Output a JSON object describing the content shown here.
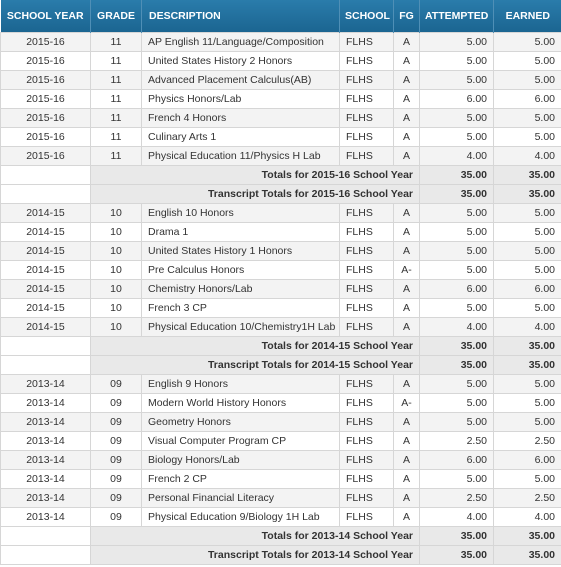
{
  "headers": {
    "school_year": "SCHOOL YEAR",
    "grade": "GRADE",
    "description": "DESCRIPTION",
    "school": "SCHOOL",
    "fg": "FG",
    "attempted": "ATTEMPTED",
    "earned": "EARNED"
  },
  "sections": [
    {
      "rows": [
        {
          "year": "2015-16",
          "grade": "11",
          "desc": "AP English 11/Language/Composition",
          "school": "FLHS",
          "fg": "A",
          "att": "5.00",
          "earn": "5.00"
        },
        {
          "year": "2015-16",
          "grade": "11",
          "desc": "United States History 2 Honors",
          "school": "FLHS",
          "fg": "A",
          "att": "5.00",
          "earn": "5.00"
        },
        {
          "year": "2015-16",
          "grade": "11",
          "desc": "Advanced Placement Calculus(AB)",
          "school": "FLHS",
          "fg": "A",
          "att": "5.00",
          "earn": "5.00"
        },
        {
          "year": "2015-16",
          "grade": "11",
          "desc": "Physics Honors/Lab",
          "school": "FLHS",
          "fg": "A",
          "att": "6.00",
          "earn": "6.00"
        },
        {
          "year": "2015-16",
          "grade": "11",
          "desc": "French 4 Honors",
          "school": "FLHS",
          "fg": "A",
          "att": "5.00",
          "earn": "5.00"
        },
        {
          "year": "2015-16",
          "grade": "11",
          "desc": "Culinary Arts 1",
          "school": "FLHS",
          "fg": "A",
          "att": "5.00",
          "earn": "5.00"
        },
        {
          "year": "2015-16",
          "grade": "11",
          "desc": "Physical Education 11/Physics H Lab",
          "school": "FLHS",
          "fg": "A",
          "att": "4.00",
          "earn": "4.00"
        }
      ],
      "totals_label": "Totals for 2015-16 School Year",
      "totals_att": "35.00",
      "totals_earn": "35.00",
      "transcript_label": "Transcript Totals for 2015-16 School Year",
      "transcript_att": "35.00",
      "transcript_earn": "35.00"
    },
    {
      "rows": [
        {
          "year": "2014-15",
          "grade": "10",
          "desc": "English 10 Honors",
          "school": "FLHS",
          "fg": "A",
          "att": "5.00",
          "earn": "5.00"
        },
        {
          "year": "2014-15",
          "grade": "10",
          "desc": "Drama 1",
          "school": "FLHS",
          "fg": "A",
          "att": "5.00",
          "earn": "5.00"
        },
        {
          "year": "2014-15",
          "grade": "10",
          "desc": "United States History 1 Honors",
          "school": "FLHS",
          "fg": "A",
          "att": "5.00",
          "earn": "5.00"
        },
        {
          "year": "2014-15",
          "grade": "10",
          "desc": "Pre Calculus Honors",
          "school": "FLHS",
          "fg": "A-",
          "att": "5.00",
          "earn": "5.00"
        },
        {
          "year": "2014-15",
          "grade": "10",
          "desc": "Chemistry Honors/Lab",
          "school": "FLHS",
          "fg": "A",
          "att": "6.00",
          "earn": "6.00"
        },
        {
          "year": "2014-15",
          "grade": "10",
          "desc": "French 3 CP",
          "school": "FLHS",
          "fg": "A",
          "att": "5.00",
          "earn": "5.00"
        },
        {
          "year": "2014-15",
          "grade": "10",
          "desc": "Physical Education 10/Chemistry1H Lab",
          "school": "FLHS",
          "fg": "A",
          "att": "4.00",
          "earn": "4.00"
        }
      ],
      "totals_label": "Totals for 2014-15 School Year",
      "totals_att": "35.00",
      "totals_earn": "35.00",
      "transcript_label": "Transcript Totals for 2014-15 School Year",
      "transcript_att": "35.00",
      "transcript_earn": "35.00"
    },
    {
      "rows": [
        {
          "year": "2013-14",
          "grade": "09",
          "desc": "English 9 Honors",
          "school": "FLHS",
          "fg": "A",
          "att": "5.00",
          "earn": "5.00"
        },
        {
          "year": "2013-14",
          "grade": "09",
          "desc": "Modern World History Honors",
          "school": "FLHS",
          "fg": "A-",
          "att": "5.00",
          "earn": "5.00"
        },
        {
          "year": "2013-14",
          "grade": "09",
          "desc": "Geometry Honors",
          "school": "FLHS",
          "fg": "A",
          "att": "5.00",
          "earn": "5.00"
        },
        {
          "year": "2013-14",
          "grade": "09",
          "desc": "Visual Computer Program CP",
          "school": "FLHS",
          "fg": "A",
          "att": "2.50",
          "earn": "2.50"
        },
        {
          "year": "2013-14",
          "grade": "09",
          "desc": "Biology Honors/Lab",
          "school": "FLHS",
          "fg": "A",
          "att": "6.00",
          "earn": "6.00"
        },
        {
          "year": "2013-14",
          "grade": "09",
          "desc": "French 2 CP",
          "school": "FLHS",
          "fg": "A",
          "att": "5.00",
          "earn": "5.00"
        },
        {
          "year": "2013-14",
          "grade": "09",
          "desc": "Personal Financial Literacy",
          "school": "FLHS",
          "fg": "A",
          "att": "2.50",
          "earn": "2.50"
        },
        {
          "year": "2013-14",
          "grade": "09",
          "desc": "Physical Education 9/Biology 1H Lab",
          "school": "FLHS",
          "fg": "A",
          "att": "4.00",
          "earn": "4.00"
        }
      ],
      "totals_label": "Totals for 2013-14 School Year",
      "totals_att": "35.00",
      "totals_earn": "35.00",
      "transcript_label": "Transcript Totals for 2013-14 School Year",
      "transcript_att": "35.00",
      "transcript_earn": "35.00"
    }
  ]
}
